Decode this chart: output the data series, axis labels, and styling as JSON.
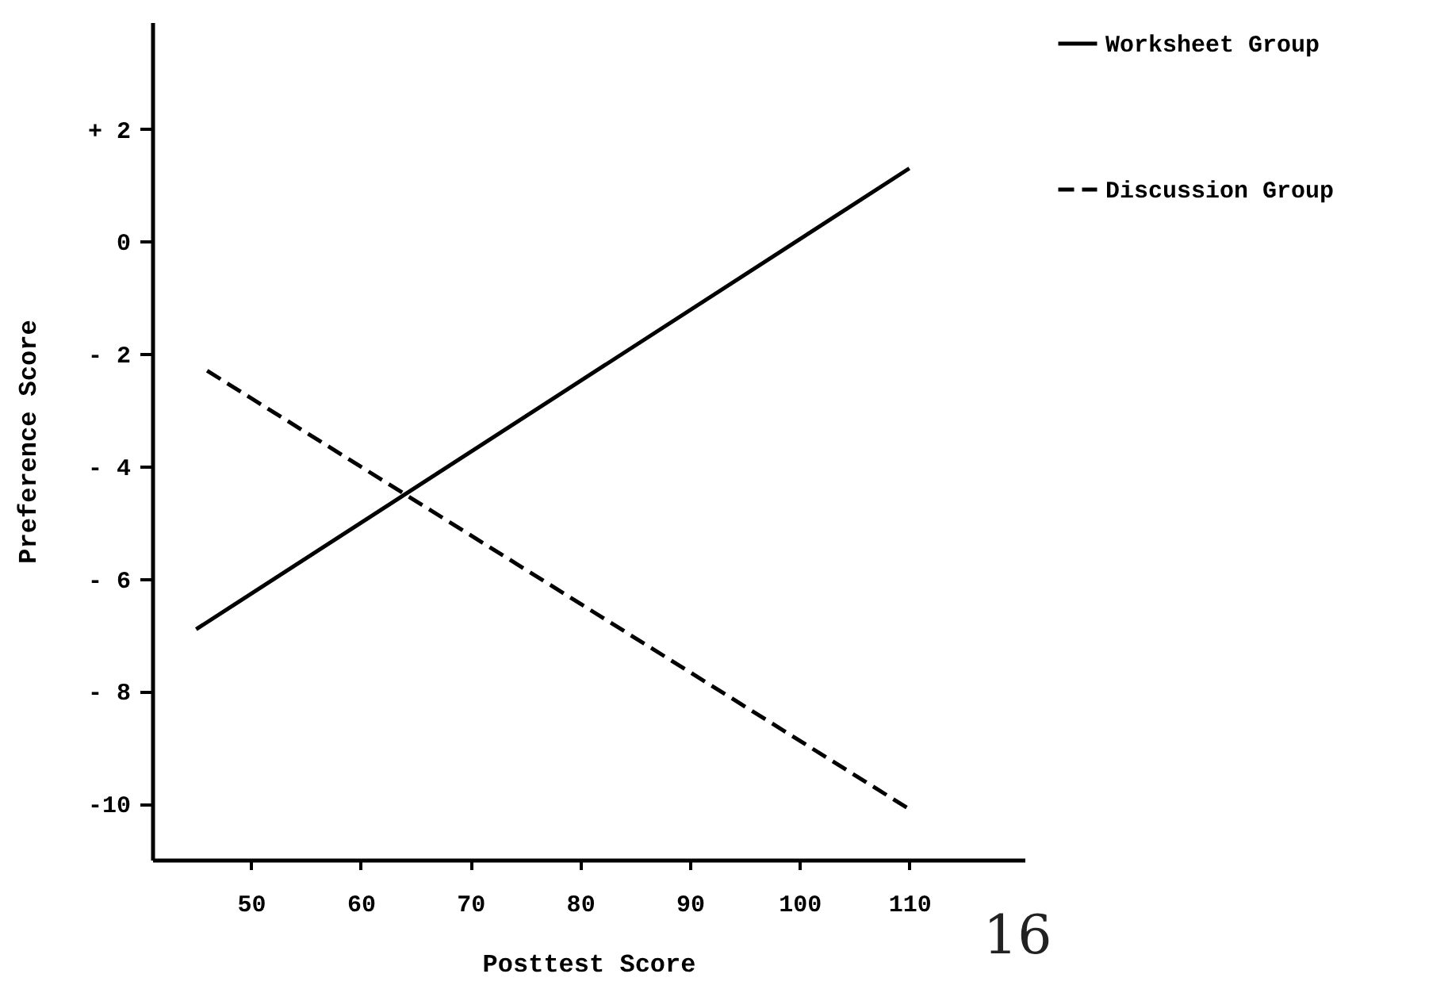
{
  "chart_data": {
    "type": "line",
    "xlabel": "Posttest Score",
    "ylabel": "Preference Score",
    "xlim": [
      41,
      120.5
    ],
    "ylim": [
      -11,
      3.9
    ],
    "xticks": [
      50,
      60,
      70,
      80,
      90,
      100,
      110
    ],
    "yticks": [
      {
        "value": 2,
        "label": "+ 2"
      },
      0,
      {
        "value": -2,
        "label": "- 2"
      },
      {
        "value": -4,
        "label": "- 4"
      },
      {
        "value": -6,
        "label": "- 6"
      },
      {
        "value": -8,
        "label": "- 8"
      },
      -10
    ],
    "series": [
      {
        "name": "Worksheet Group",
        "color": "#000000",
        "line_style": "solid",
        "x": [
          45,
          110
        ],
        "values": [
          -6.9,
          1.3
        ]
      },
      {
        "name": "Discussion Group",
        "color": "#000000",
        "line_style": "dashed",
        "x": [
          46,
          110
        ],
        "values": [
          -2.3,
          -10.1
        ]
      }
    ],
    "legend": "right",
    "grid": false,
    "marker": "none",
    "annotations": [
      "16"
    ]
  }
}
